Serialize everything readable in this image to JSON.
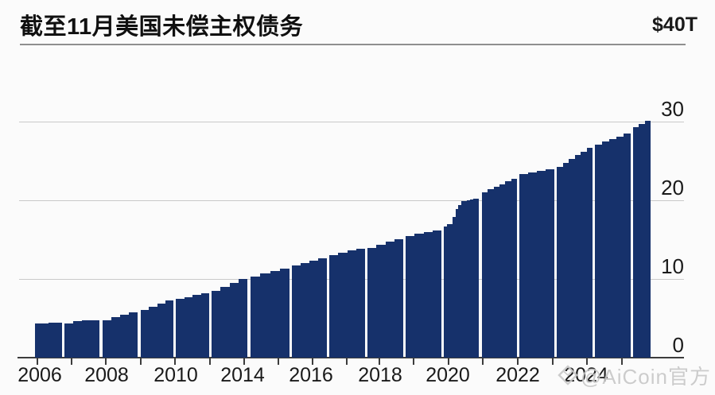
{
  "header": {
    "title": "截至11月美国未偿主权债务",
    "axis_max_label": "$40T"
  },
  "watermark": {
    "text": "@AiCoin官方",
    "logo": "aicoin-diamond"
  },
  "colors": {
    "bar": "#16316b",
    "gridline": "#c9c9c9",
    "axis": "#3c3c3c",
    "text": "#1a1a1a",
    "watermark": "#c7c7c7"
  },
  "chart_data": {
    "type": "bar",
    "title": "截至11月美国未偿主权债务",
    "unit": "trillion USD",
    "ylabel": "$40T",
    "ylim": [
      0,
      40
    ],
    "y_ticks": [
      0,
      10,
      20,
      30
    ],
    "y_axis_side": "right",
    "grid": true,
    "legend": false,
    "x_tick_labels": [
      "2006",
      "2008",
      "2010",
      "2014",
      "2016",
      "2018",
      "2020",
      "2022",
      "2024"
    ],
    "bar_groups": [
      {
        "name": "group-01",
        "values": [
          4.4,
          4.4,
          4.45,
          4.45
        ]
      },
      {
        "name": "group-02",
        "values": [
          4.3,
          4.7,
          4.75,
          4.75
        ]
      },
      {
        "name": "group-03",
        "values": [
          4.75,
          5.1,
          5.45,
          5.75
        ]
      },
      {
        "name": "group-04",
        "values": [
          6.1,
          6.5,
          6.9,
          7.3
        ]
      },
      {
        "name": "group-05",
        "values": [
          7.5,
          7.7,
          8.0,
          8.2
        ]
      },
      {
        "name": "group-06",
        "values": [
          8.5,
          9.0,
          9.5,
          10.0
        ]
      },
      {
        "name": "group-07",
        "values": [
          10.3,
          10.7,
          11.0,
          11.3
        ]
      },
      {
        "name": "group-08",
        "values": [
          11.7,
          12.0,
          12.3,
          12.6
        ]
      },
      {
        "name": "group-09",
        "values": [
          13.0,
          13.3,
          13.6,
          13.8
        ]
      },
      {
        "name": "group-10",
        "values": [
          14.0,
          14.4,
          14.8,
          15.1
        ]
      },
      {
        "name": "group-11",
        "values": [
          15.5,
          15.8,
          16.0,
          16.2
        ]
      },
      {
        "name": "group-12",
        "values": [
          16.7,
          17.0,
          17.0,
          17.9,
          18.9,
          19.4,
          19.9,
          19.9,
          20.0,
          20.1,
          20.2,
          20.2
        ]
      },
      {
        "name": "group-13",
        "values": [
          21.0,
          21.4,
          21.7,
          22.0,
          22.4,
          22.7
        ]
      },
      {
        "name": "group-14",
        "values": [
          23.3,
          23.5,
          23.7,
          23.9
        ]
      },
      {
        "name": "group-15",
        "values": [
          24.3,
          24.8,
          25.3,
          25.8,
          26.2,
          26.7
        ]
      },
      {
        "name": "group-16",
        "values": [
          27.1,
          27.5,
          27.8,
          28.1,
          28.5
        ]
      },
      {
        "name": "group-17",
        "values": [
          29.3,
          29.7,
          30.1
        ]
      }
    ]
  }
}
